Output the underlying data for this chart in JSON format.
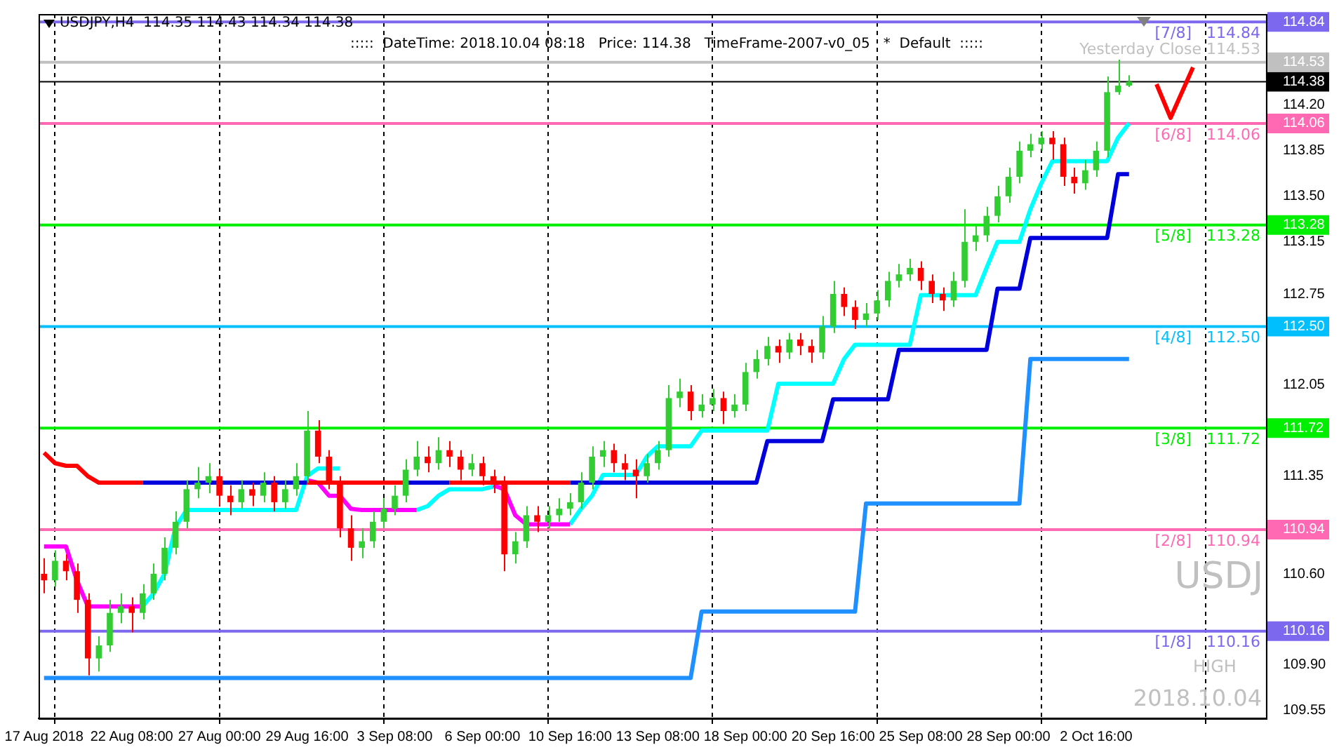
{
  "chart_data": {
    "type": "candlestick",
    "title": "USDJPY,H4  114.35 114.43 114.34 114.38",
    "subtitle": ":::::  DateTime: 2018.10.04 08:18   Price: 114.38   TimeFrame-2007-v0_05   *  Default  :::::",
    "annotations": [
      "USDJ",
      "HIGH",
      "2018.10.04"
    ],
    "categories": [
      "17 Aug 2018",
      null,
      null,
      null,
      null,
      null,
      null,
      null,
      "22 Aug 08:00",
      null,
      null,
      null,
      null,
      null,
      null,
      null,
      "27 Aug 00:00",
      null,
      null,
      null,
      null,
      null,
      null,
      null,
      "29 Aug 16:00",
      null,
      null,
      null,
      null,
      null,
      null,
      null,
      "3 Sep 08:00",
      null,
      null,
      null,
      null,
      null,
      null,
      null,
      "6 Sep 00:00",
      null,
      null,
      null,
      null,
      null,
      null,
      null,
      "10 Sep 16:00",
      null,
      null,
      null,
      null,
      null,
      null,
      null,
      "13 Sep 08:00",
      null,
      null,
      null,
      null,
      null,
      null,
      null,
      "18 Sep 00:00",
      null,
      null,
      null,
      null,
      null,
      null,
      null,
      "20 Sep 16:00",
      null,
      null,
      null,
      null,
      null,
      null,
      null,
      "25 Sep 08:00",
      null,
      null,
      null,
      null,
      null,
      null,
      null,
      "28 Sep 00:00",
      null,
      null,
      null,
      null,
      null,
      null,
      null,
      "2 Oct 16:00",
      null,
      null,
      null,
      null,
      null,
      null,
      null,
      null,
      null,
      null,
      null,
      null,
      null,
      null,
      null
    ],
    "ohlc": [
      [
        110.6,
        110.72,
        110.45,
        110.55
      ],
      [
        110.55,
        110.78,
        110.5,
        110.7
      ],
      [
        110.7,
        110.75,
        110.55,
        110.62
      ],
      [
        110.62,
        110.68,
        110.3,
        110.4
      ],
      [
        110.4,
        110.45,
        109.82,
        109.95
      ],
      [
        109.95,
        110.12,
        109.85,
        110.05
      ],
      [
        110.05,
        110.4,
        110.0,
        110.3
      ],
      [
        110.3,
        110.45,
        110.22,
        110.35
      ],
      [
        110.35,
        110.42,
        110.15,
        110.3
      ],
      [
        110.3,
        110.52,
        110.25,
        110.45
      ],
      [
        110.45,
        110.68,
        110.4,
        110.6
      ],
      [
        110.6,
        110.88,
        110.55,
        110.8
      ],
      [
        110.8,
        111.08,
        110.75,
        111.0
      ],
      [
        111.0,
        111.32,
        110.95,
        111.25
      ],
      [
        111.25,
        111.42,
        111.18,
        111.3
      ],
      [
        111.3,
        111.45,
        111.22,
        111.35
      ],
      [
        111.35,
        111.4,
        111.12,
        111.2
      ],
      [
        111.2,
        111.28,
        111.05,
        111.15
      ],
      [
        111.15,
        111.32,
        111.1,
        111.25
      ],
      [
        111.25,
        111.3,
        111.12,
        111.2
      ],
      [
        111.2,
        111.38,
        111.15,
        111.3
      ],
      [
        111.3,
        111.35,
        111.08,
        111.15
      ],
      [
        111.15,
        111.32,
        111.1,
        111.25
      ],
      [
        111.25,
        111.45,
        111.2,
        111.35
      ],
      [
        111.35,
        111.85,
        111.3,
        111.7
      ],
      [
        111.7,
        111.78,
        111.45,
        111.5
      ],
      [
        111.5,
        111.55,
        111.25,
        111.3
      ],
      [
        111.3,
        111.35,
        110.88,
        110.95
      ],
      [
        110.95,
        111.05,
        110.7,
        110.8
      ],
      [
        110.8,
        110.95,
        110.72,
        110.85
      ],
      [
        110.85,
        111.08,
        110.8,
        111.0
      ],
      [
        111.0,
        111.18,
        110.95,
        111.1
      ],
      [
        111.1,
        111.28,
        111.05,
        111.2
      ],
      [
        111.2,
        111.48,
        111.15,
        111.4
      ],
      [
        111.4,
        111.62,
        111.35,
        111.5
      ],
      [
        111.5,
        111.58,
        111.38,
        111.45
      ],
      [
        111.45,
        111.65,
        111.4,
        111.55
      ],
      [
        111.55,
        111.62,
        111.42,
        111.5
      ],
      [
        111.5,
        111.55,
        111.32,
        111.4
      ],
      [
        111.4,
        111.52,
        111.35,
        111.45
      ],
      [
        111.45,
        111.5,
        111.28,
        111.35
      ],
      [
        111.35,
        111.4,
        111.22,
        111.3
      ],
      [
        111.3,
        111.35,
        110.62,
        110.75
      ],
      [
        110.75,
        110.92,
        110.68,
        110.85
      ],
      [
        110.85,
        111.12,
        110.8,
        111.05
      ],
      [
        111.05,
        111.12,
        110.92,
        111.0
      ],
      [
        111.0,
        111.12,
        110.95,
        111.05
      ],
      [
        111.05,
        111.18,
        111.0,
        111.1
      ],
      [
        111.1,
        111.22,
        111.05,
        111.15
      ],
      [
        111.15,
        111.38,
        111.1,
        111.3
      ],
      [
        111.3,
        111.58,
        111.25,
        111.5
      ],
      [
        111.5,
        111.62,
        111.42,
        111.55
      ],
      [
        111.55,
        111.6,
        111.38,
        111.45
      ],
      [
        111.45,
        111.52,
        111.32,
        111.4
      ],
      [
        111.4,
        111.48,
        111.18,
        111.35
      ],
      [
        111.35,
        111.52,
        111.3,
        111.45
      ],
      [
        111.45,
        111.62,
        111.4,
        111.55
      ],
      [
        111.55,
        112.05,
        111.5,
        111.95
      ],
      [
        111.95,
        112.1,
        111.88,
        112.0
      ],
      [
        112.0,
        112.05,
        111.78,
        111.85
      ],
      [
        111.85,
        111.98,
        111.8,
        111.9
      ],
      [
        111.9,
        112.02,
        111.85,
        111.95
      ],
      [
        111.95,
        112.0,
        111.75,
        111.85
      ],
      [
        111.85,
        111.98,
        111.8,
        111.9
      ],
      [
        111.9,
        112.22,
        111.85,
        112.15
      ],
      [
        112.15,
        112.32,
        112.1,
        112.25
      ],
      [
        112.25,
        112.42,
        112.2,
        112.35
      ],
      [
        112.35,
        112.4,
        112.22,
        112.3
      ],
      [
        112.3,
        112.45,
        112.25,
        112.4
      ],
      [
        112.4,
        112.45,
        112.28,
        112.35
      ],
      [
        112.35,
        112.4,
        112.22,
        112.3
      ],
      [
        112.3,
        112.58,
        112.25,
        112.5
      ],
      [
        112.5,
        112.85,
        112.45,
        112.75
      ],
      [
        112.75,
        112.8,
        112.58,
        112.65
      ],
      [
        112.65,
        112.7,
        112.48,
        112.55
      ],
      [
        112.55,
        112.68,
        112.5,
        112.6
      ],
      [
        112.6,
        112.78,
        112.55,
        112.7
      ],
      [
        112.7,
        112.92,
        112.65,
        112.85
      ],
      [
        112.85,
        112.98,
        112.8,
        112.9
      ],
      [
        112.9,
        113.02,
        112.85,
        112.95
      ],
      [
        112.95,
        113.0,
        112.78,
        112.85
      ],
      [
        112.85,
        112.9,
        112.68,
        112.75
      ],
      [
        112.75,
        112.8,
        112.62,
        112.7
      ],
      [
        112.7,
        112.92,
        112.65,
        112.85
      ],
      [
        112.85,
        113.4,
        112.8,
        113.15
      ],
      [
        113.15,
        113.28,
        113.08,
        113.2
      ],
      [
        113.2,
        113.42,
        113.15,
        113.35
      ],
      [
        113.35,
        113.58,
        113.3,
        113.5
      ],
      [
        113.5,
        113.72,
        113.45,
        113.65
      ],
      [
        113.65,
        113.92,
        113.6,
        113.85
      ],
      [
        113.85,
        113.98,
        113.8,
        113.9
      ],
      [
        113.9,
        114.0,
        113.85,
        113.95
      ],
      [
        113.95,
        114.0,
        113.78,
        113.9
      ],
      [
        113.9,
        113.95,
        113.58,
        113.65
      ],
      [
        113.65,
        113.72,
        113.52,
        113.6
      ],
      [
        113.6,
        113.78,
        113.55,
        113.7
      ],
      [
        113.7,
        113.92,
        113.65,
        113.85
      ],
      [
        113.85,
        114.42,
        113.8,
        114.3
      ],
      [
        114.3,
        114.55,
        114.28,
        114.35
      ],
      [
        114.35,
        114.43,
        114.34,
        114.38
      ],
      null,
      null,
      null,
      null,
      null,
      null,
      null,
      null,
      null,
      null,
      null,
      null
    ],
    "series": [
      {
        "type": "line",
        "color": "#ff0000",
        "values": [
          111.53,
          111.45,
          111.43,
          111.43,
          111.35,
          111.3,
          111.3,
          111.3,
          111.3,
          111.3,
          null,
          null,
          null,
          null,
          null,
          null,
          null,
          null,
          null,
          null,
          null,
          null,
          null,
          null,
          111.3,
          111.3,
          111.3,
          111.3,
          111.3,
          111.3,
          111.3,
          111.3,
          111.3,
          111.3,
          null,
          null,
          null,
          111.3,
          111.3,
          111.3,
          111.3,
          111.3,
          111.3,
          111.3,
          111.3,
          111.3,
          111.3,
          111.3,
          111.3,
          null,
          null,
          null,
          null,
          null,
          null,
          null,
          null,
          null,
          null,
          null,
          null,
          null,
          null,
          null,
          null,
          null,
          null,
          null,
          null,
          null,
          null,
          null,
          null,
          null,
          null,
          null,
          null,
          null,
          null,
          null,
          null,
          null,
          null,
          null,
          null,
          null,
          null,
          null,
          null,
          null,
          null,
          null,
          null,
          null,
          null,
          null,
          null,
          null,
          null,
          null,
          null,
          null,
          null,
          null,
          null,
          null,
          null,
          null,
          null,
          null,
          null,
          null
        ]
      },
      {
        "type": "line",
        "color": "#ff00ff",
        "values": [
          110.81,
          110.81,
          110.81,
          110.55,
          110.35,
          110.35,
          110.35,
          110.35,
          110.35,
          110.35,
          null,
          null,
          null,
          null,
          null,
          null,
          null,
          null,
          null,
          null,
          null,
          null,
          null,
          null,
          111.32,
          111.3,
          111.2,
          111.2,
          111.1,
          111.09,
          111.09,
          111.09,
          111.09,
          111.09,
          111.09,
          null,
          null,
          null,
          null,
          null,
          null,
          111.28,
          111.25,
          111.05,
          110.98,
          110.98,
          110.98,
          110.98,
          110.98,
          null,
          null,
          null,
          null,
          null,
          null,
          null,
          null,
          null,
          null,
          null,
          null,
          null,
          null,
          null,
          null,
          null,
          null,
          null,
          null,
          null,
          null,
          null,
          null,
          null,
          null,
          null,
          null,
          null,
          null,
          null,
          null,
          null,
          null,
          null,
          null,
          null,
          null,
          null,
          null,
          null,
          null,
          null,
          null,
          null,
          null,
          null,
          null,
          null,
          null,
          null,
          null,
          null,
          null,
          null,
          null,
          null,
          null,
          null,
          null,
          null,
          null,
          null
        ]
      },
      {
        "type": "line",
        "color": "#0000dd",
        "values": [
          null,
          null,
          null,
          null,
          null,
          null,
          null,
          null,
          null,
          111.3,
          111.3,
          111.3,
          111.3,
          111.3,
          111.3,
          111.3,
          111.3,
          111.3,
          111.3,
          111.3,
          111.3,
          111.3,
          111.3,
          111.3,
          111.3,
          null,
          null,
          null,
          null,
          null,
          null,
          null,
          null,
          111.3,
          111.3,
          111.3,
          111.3,
          111.3,
          null,
          null,
          null,
          null,
          null,
          null,
          null,
          null,
          null,
          null,
          111.3,
          111.3,
          111.3,
          111.3,
          111.3,
          111.3,
          111.3,
          111.3,
          111.3,
          111.3,
          111.3,
          111.3,
          111.3,
          111.3,
          111.3,
          111.3,
          111.3,
          111.3,
          111.62,
          111.62,
          111.62,
          111.62,
          111.62,
          111.62,
          111.94,
          111.94,
          111.94,
          111.94,
          111.94,
          111.94,
          112.32,
          112.32,
          112.32,
          112.32,
          112.32,
          112.32,
          112.32,
          112.32,
          112.32,
          112.79,
          112.79,
          112.79,
          113.18,
          113.18,
          113.18,
          113.18,
          113.18,
          113.18,
          113.18,
          113.18,
          113.67,
          113.67,
          null,
          null,
          null,
          null,
          null,
          null,
          null,
          null,
          null,
          null,
          null,
          null
        ]
      },
      {
        "type": "line",
        "color": "#00ffff",
        "values": [
          null,
          null,
          null,
          null,
          null,
          null,
          null,
          null,
          null,
          110.35,
          110.45,
          110.6,
          110.96,
          111.09,
          111.09,
          111.09,
          111.09,
          111.09,
          111.09,
          111.09,
          111.09,
          111.09,
          111.09,
          111.09,
          111.35,
          111.41,
          111.41,
          111.41,
          null,
          null,
          null,
          null,
          null,
          null,
          111.09,
          111.12,
          111.2,
          111.25,
          111.25,
          111.25,
          111.25,
          111.27,
          null,
          null,
          null,
          null,
          null,
          null,
          110.98,
          111.1,
          111.2,
          111.36,
          111.36,
          111.36,
          111.36,
          111.5,
          111.58,
          111.58,
          111.58,
          111.58,
          111.7,
          111.7,
          111.7,
          111.7,
          111.7,
          111.7,
          111.7,
          112.06,
          112.06,
          112.06,
          112.06,
          112.06,
          112.06,
          112.25,
          112.36,
          112.36,
          112.36,
          112.36,
          112.36,
          112.36,
          112.74,
          112.74,
          112.74,
          112.74,
          112.74,
          112.74,
          112.95,
          113.15,
          113.15,
          113.15,
          113.4,
          113.6,
          113.77,
          113.77,
          113.77,
          113.77,
          113.77,
          113.77,
          113.95,
          114.06,
          null,
          null,
          null,
          null,
          null,
          null,
          null,
          null,
          null,
          null,
          null,
          null
        ]
      },
      {
        "type": "line",
        "color": "#1e90ff",
        "values": [
          109.8,
          109.8,
          109.8,
          109.8,
          109.8,
          109.8,
          109.8,
          109.8,
          109.8,
          109.8,
          109.8,
          109.8,
          109.8,
          109.8,
          109.8,
          109.8,
          109.8,
          109.8,
          109.8,
          109.8,
          109.8,
          109.8,
          109.8,
          109.8,
          109.8,
          109.8,
          109.8,
          109.8,
          109.8,
          109.8,
          109.8,
          109.8,
          109.8,
          109.8,
          109.8,
          109.8,
          109.8,
          109.8,
          109.8,
          109.8,
          109.8,
          109.8,
          109.8,
          109.8,
          109.8,
          109.8,
          109.8,
          109.8,
          109.8,
          109.8,
          109.8,
          109.8,
          109.8,
          109.8,
          109.8,
          109.8,
          109.8,
          109.8,
          109.8,
          109.8,
          110.31,
          110.31,
          110.31,
          110.31,
          110.31,
          110.31,
          110.31,
          110.31,
          110.31,
          110.31,
          110.31,
          110.31,
          110.31,
          110.31,
          110.31,
          111.14,
          111.14,
          111.14,
          111.14,
          111.14,
          111.14,
          111.14,
          111.14,
          111.14,
          111.14,
          111.14,
          111.14,
          111.14,
          111.14,
          111.14,
          112.25,
          112.25,
          112.25,
          112.25,
          112.25,
          112.25,
          112.25,
          112.25,
          112.25,
          112.25,
          null,
          null,
          null,
          null,
          null,
          null,
          null,
          null,
          null,
          null,
          null,
          null
        ]
      }
    ],
    "ylim": [
      109.49,
      114.9
    ],
    "yticks": [
      {
        "value": 109.55,
        "label": "109.55"
      },
      {
        "value": 109.9,
        "label": "109.90"
      },
      {
        "value": 110.16,
        "label": "110.16"
      },
      {
        "value": 110.6,
        "label": "110.60"
      },
      {
        "value": 110.94,
        "label": "110.94"
      },
      {
        "value": 111.35,
        "label": "111.35"
      },
      {
        "value": 111.72,
        "label": "111.72"
      },
      {
        "value": 112.05,
        "label": "112.05"
      },
      {
        "value": 112.5,
        "label": "112.50"
      },
      {
        "value": 112.75,
        "label": "112.75"
      },
      {
        "value": 113.15,
        "label": "113.15"
      },
      {
        "value": 113.28,
        "label": "113.28"
      },
      {
        "value": 113.5,
        "label": "113.50"
      },
      {
        "value": 113.85,
        "label": "113.85"
      },
      {
        "value": 114.06,
        "label": "114.06"
      },
      {
        "value": 114.2,
        "label": "114.20"
      },
      {
        "value": 114.38,
        "label": "114.38"
      },
      {
        "value": 114.53,
        "label": "114.53"
      },
      {
        "value": 114.84,
        "label": "114.84"
      }
    ],
    "ref_lines": [
      {
        "axis": "y",
        "value": 114.84,
        "label": "[7/8]   114.84",
        "color": "#7b68ee"
      },
      {
        "axis": "y",
        "value": 114.53,
        "label": "Yesterday Close 114.53",
        "color": "#c0c0c0"
      },
      {
        "axis": "y",
        "value": 114.38,
        "color": "#000000"
      },
      {
        "axis": "y",
        "value": 114.06,
        "label": "[6/8]   114.06",
        "color": "#ff69b4"
      },
      {
        "axis": "y",
        "value": 113.28,
        "label": "[5/8]   113.28",
        "color": "#00ee00"
      },
      {
        "axis": "y",
        "value": 112.5,
        "label": "[4/8]   112.50",
        "color": "#00bfff"
      },
      {
        "axis": "y",
        "value": 111.72,
        "label": "[3/8]   111.72",
        "color": "#00ee00"
      },
      {
        "axis": "y",
        "value": 110.94,
        "label": "[2/8]   110.94",
        "color": "#ff69b4"
      },
      {
        "axis": "y",
        "value": 110.16,
        "label": "[1/8]   110.16",
        "color": "#7b68ee"
      }
    ],
    "grid": "x"
  }
}
